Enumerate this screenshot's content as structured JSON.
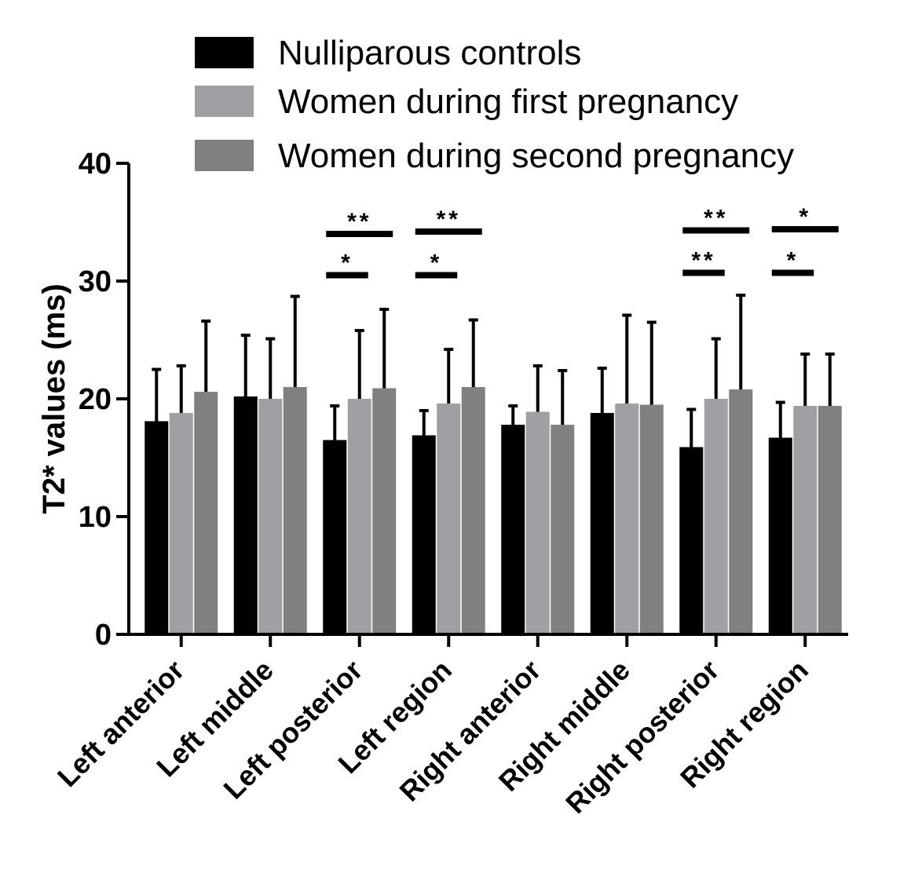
{
  "chart_data": {
    "type": "bar",
    "ylabel": "T2* values (ms)",
    "xlabel": "",
    "ylim": [
      0,
      40
    ],
    "yticks": [
      0,
      10,
      20,
      30,
      40
    ],
    "legend_position": "top-right",
    "categories": [
      "Left anterior",
      "Left middle",
      "Left posterior",
      "Left region",
      "Right anterior",
      "Right middle",
      "Right posterior",
      "Right region"
    ],
    "series": [
      {
        "name": "Nulliparous controls",
        "color": "#000000",
        "values": [
          18.1,
          20.2,
          16.5,
          16.9,
          17.8,
          18.8,
          15.9,
          16.7
        ],
        "errors": [
          4.4,
          5.2,
          2.9,
          2.1,
          1.6,
          3.8,
          3.2,
          3.0
        ]
      },
      {
        "name": "Women during first pregnancy",
        "color": "#a0a0a4",
        "values": [
          18.8,
          20.0,
          20.0,
          19.6,
          18.9,
          19.6,
          20.0,
          19.4
        ],
        "errors": [
          4.0,
          5.1,
          5.8,
          4.6,
          3.9,
          7.5,
          5.1,
          4.4
        ]
      },
      {
        "name": "Women during second pregnancy",
        "color": "#808080",
        "values": [
          20.6,
          21.0,
          20.9,
          21.0,
          17.8,
          19.5,
          20.8,
          19.4
        ],
        "errors": [
          6.0,
          7.7,
          6.7,
          5.7,
          4.6,
          7.0,
          8.0,
          4.4
        ]
      }
    ],
    "annotations": [
      {
        "category": 2,
        "from": 0,
        "to": 1,
        "label": "*",
        "y": 30.5
      },
      {
        "category": 2,
        "from": 0,
        "to": 2,
        "label": "**",
        "y": 34.0
      },
      {
        "category": 3,
        "from": 0,
        "to": 1,
        "label": "*",
        "y": 30.5
      },
      {
        "category": 3,
        "from": 0,
        "to": 2,
        "label": "**",
        "y": 34.2
      },
      {
        "category": 6,
        "from": 0,
        "to": 1,
        "label": "**",
        "y": 30.7
      },
      {
        "category": 6,
        "from": 0,
        "to": 2,
        "label": "**",
        "y": 34.3
      },
      {
        "category": 7,
        "from": 0,
        "to": 1,
        "label": "*",
        "y": 30.7
      },
      {
        "category": 7,
        "from": 0,
        "to": 2,
        "label": "*",
        "y": 34.4
      }
    ]
  }
}
